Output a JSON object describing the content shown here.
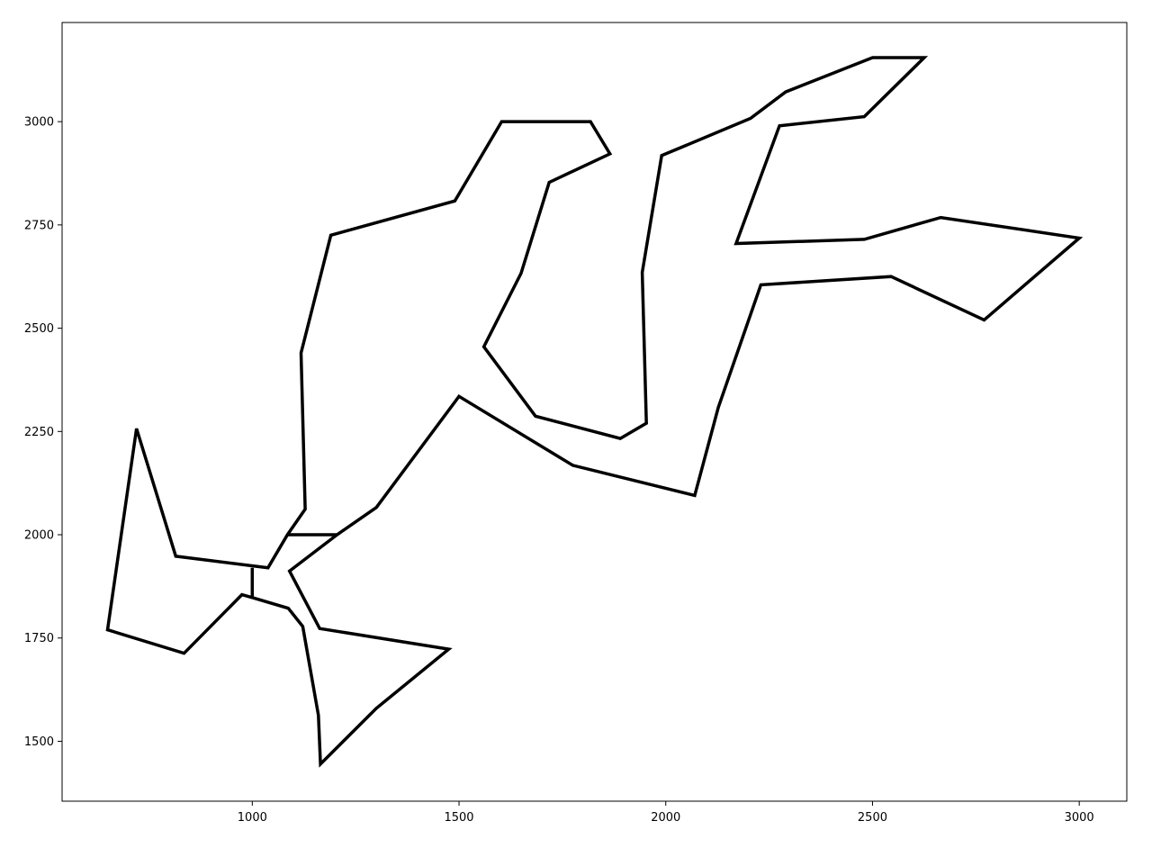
{
  "chart_data": {
    "type": "line",
    "title": "",
    "xlabel": "",
    "ylabel": "",
    "xlim": [
      540,
      3115
    ],
    "ylim": [
      1355,
      3240
    ],
    "xticks": [
      1000,
      1500,
      2000,
      2500,
      3000
    ],
    "yticks": [
      1500,
      1750,
      2000,
      2250,
      2500,
      2750,
      3000
    ],
    "x_tick_labels": [
      "1000",
      "1500",
      "2000",
      "2500",
      "3000"
    ],
    "y_tick_labels": [
      "1500",
      "1750",
      "2000",
      "2250",
      "2500",
      "2750",
      "3000"
    ],
    "grid": false,
    "legend": "none",
    "line_color": "#000000",
    "series": [
      {
        "closed": true,
        "points": [
          [
            1000,
            1920
          ],
          [
            1000,
            1848
          ],
          [
            1087,
            1822
          ],
          [
            1122,
            1778
          ],
          [
            1160,
            1563
          ],
          [
            1165,
            1445
          ],
          [
            1300,
            1580
          ],
          [
            1475,
            1723
          ],
          [
            1163,
            1773
          ],
          [
            1090,
            1912
          ],
          [
            1205,
            2000
          ],
          [
            1300,
            2066
          ],
          [
            1500,
            2335
          ],
          [
            1775,
            2168
          ],
          [
            2070,
            2095
          ],
          [
            2127,
            2308
          ],
          [
            2230,
            2605
          ],
          [
            2545,
            2625
          ],
          [
            2770,
            2520
          ],
          [
            3000,
            2718
          ],
          [
            2665,
            2768
          ],
          [
            2480,
            2715
          ],
          [
            2170,
            2705
          ],
          [
            2275,
            2990
          ],
          [
            2480,
            3012
          ],
          [
            2625,
            3155
          ],
          [
            2500,
            3155
          ],
          [
            2290,
            3072
          ],
          [
            2205,
            3008
          ],
          [
            1990,
            2918
          ],
          [
            1943,
            2635
          ],
          [
            1953,
            2270
          ],
          [
            1890,
            2233
          ],
          [
            1685,
            2287
          ],
          [
            1560,
            2455
          ],
          [
            1650,
            2633
          ],
          [
            1718,
            2853
          ],
          [
            1865,
            2922
          ],
          [
            1818,
            3000
          ],
          [
            1603,
            3000
          ],
          [
            1490,
            2808
          ],
          [
            1190,
            2725
          ],
          [
            1118,
            2440
          ],
          [
            1128,
            2062
          ],
          [
            1085,
            2000
          ],
          [
            1038,
            1920
          ],
          [
            815,
            1948
          ],
          [
            720,
            2257
          ],
          [
            650,
            1770
          ],
          [
            835,
            1713
          ],
          [
            975,
            1855
          ],
          [
            1000,
            1848
          ]
        ]
      },
      {
        "closed": false,
        "points": [
          [
            1085,
            2000
          ],
          [
            1205,
            2000
          ]
        ]
      }
    ]
  }
}
